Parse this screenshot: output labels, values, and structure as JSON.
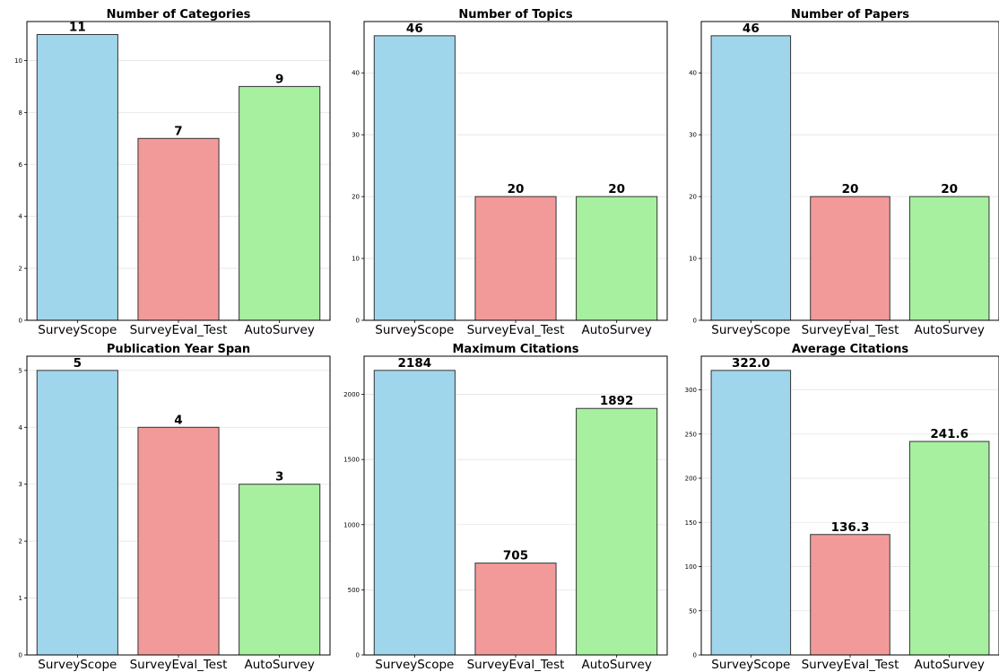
{
  "chart_data": [
    {
      "type": "bar",
      "title": "Number of Categories",
      "categories": [
        "SurveyScope",
        "SurveyEval_Test",
        "AutoSurvey"
      ],
      "values": [
        11,
        7,
        9
      ],
      "value_labels": [
        "11",
        "7",
        "9"
      ],
      "ylim": [
        0,
        11.5
      ],
      "yticks": [
        0,
        2,
        4,
        6,
        8,
        10
      ],
      "grid": true
    },
    {
      "type": "bar",
      "title": "Number of Topics",
      "categories": [
        "SurveyScope",
        "SurveyEval_Test",
        "AutoSurvey"
      ],
      "values": [
        46,
        20,
        20
      ],
      "value_labels": [
        "46",
        "20",
        "20"
      ],
      "ylim": [
        0,
        48.3
      ],
      "yticks": [
        0,
        10,
        20,
        30,
        40
      ],
      "grid": true
    },
    {
      "type": "bar",
      "title": "Number of Papers",
      "categories": [
        "SurveyScope",
        "SurveyEval_Test",
        "AutoSurvey"
      ],
      "values": [
        46,
        20,
        20
      ],
      "value_labels": [
        "46",
        "20",
        "20"
      ],
      "ylim": [
        0,
        48.3
      ],
      "yticks": [
        0,
        10,
        20,
        30,
        40
      ],
      "grid": true
    },
    {
      "type": "bar",
      "title": "Publication Year Span",
      "categories": [
        "SurveyScope",
        "SurveyEval_Test",
        "AutoSurvey"
      ],
      "values": [
        5,
        4,
        3
      ],
      "value_labels": [
        "5",
        "4",
        "3"
      ],
      "ylim": [
        0,
        5.25
      ],
      "yticks": [
        0,
        1,
        2,
        3,
        4,
        5
      ],
      "grid": true
    },
    {
      "type": "bar",
      "title": "Maximum Citations",
      "categories": [
        "SurveyScope",
        "SurveyEval_Test",
        "AutoSurvey"
      ],
      "values": [
        2184,
        705,
        1892
      ],
      "value_labels": [
        "2184",
        "705",
        "1892"
      ],
      "ylim": [
        0,
        2293
      ],
      "yticks": [
        0,
        500,
        1000,
        1500,
        2000
      ],
      "grid": true
    },
    {
      "type": "bar",
      "title": "Average Citations",
      "categories": [
        "SurveyScope",
        "SurveyEval_Test",
        "AutoSurvey"
      ],
      "values": [
        322.0,
        136.3,
        241.6
      ],
      "value_labels": [
        "322.0",
        "136.3",
        "241.6"
      ],
      "ylim": [
        0,
        338.1
      ],
      "yticks": [
        0,
        50,
        100,
        150,
        200,
        250,
        300
      ],
      "grid": true
    }
  ],
  "colors": {
    "SurveyScope": "#a0d6ec",
    "SurveyEval_Test": "#f29a9a",
    "AutoSurvey": "#a6f0a0",
    "bar_edge": "#333333",
    "grid": "#e3e3e3"
  }
}
